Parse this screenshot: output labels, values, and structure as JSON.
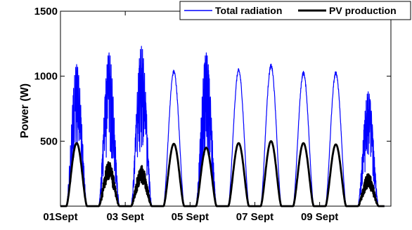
{
  "chart_data": {
    "type": "line",
    "title": "",
    "xlabel": "",
    "ylabel": "Power (W)",
    "x_unit": "days",
    "xlim": [
      0,
      10.2
    ],
    "ylim": [
      0,
      1500
    ],
    "yticks": [
      500,
      1000,
      1500
    ],
    "xticks": [
      {
        "value": 0,
        "label": "01Sept"
      },
      {
        "value": 2,
        "label": "03 Sept"
      },
      {
        "value": 4,
        "label": "05 Sept"
      },
      {
        "value": 6,
        "label": "07 Sept"
      },
      {
        "value": 8,
        "label": "09 Sept"
      }
    ],
    "grid": false,
    "legend_position": "top-right",
    "series": [
      {
        "name": "Total radiation",
        "color": "#0000ff",
        "daily_peak": [
          1090,
          1180,
          1230,
          1050,
          1180,
          1060,
          1095,
          1040,
          1040,
          880
        ],
        "cloudy_days": [
          0,
          1,
          2,
          4,
          9
        ]
      },
      {
        "name": "PV production",
        "color": "#000000",
        "daily_peak": [
          485,
          345,
          320,
          480,
          450,
          485,
          500,
          485,
          475,
          250
        ],
        "cloudy_days": [
          1,
          2,
          9
        ]
      }
    ]
  }
}
